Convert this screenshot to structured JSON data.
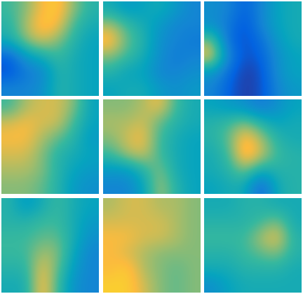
{
  "chart_data": [
    {
      "type": "heatmap",
      "tick_labels": false,
      "zlim": [
        0,
        1
      ],
      "cells": [
        [
          0.6,
          0.7,
          0.85,
          0.9,
          0.7,
          0.55
        ],
        [
          0.55,
          0.75,
          0.9,
          0.85,
          0.6,
          0.5
        ],
        [
          0.5,
          0.7,
          0.8,
          0.7,
          0.55,
          0.45
        ],
        [
          0.15,
          0.4,
          0.5,
          0.6,
          0.5,
          0.45
        ],
        [
          0.1,
          0.25,
          0.3,
          0.55,
          0.5,
          0.45
        ],
        [
          0.3,
          0.3,
          0.35,
          0.55,
          0.5,
          0.45
        ]
      ]
    },
    {
      "type": "heatmap",
      "tick_labels": false,
      "zlim": [
        0,
        1
      ],
      "cells": [
        [
          0.5,
          0.4,
          0.45,
          0.5,
          0.4,
          0.3
        ],
        [
          0.75,
          0.6,
          0.5,
          0.4,
          0.3,
          0.3
        ],
        [
          0.9,
          0.65,
          0.55,
          0.35,
          0.3,
          0.25
        ],
        [
          0.7,
          0.6,
          0.5,
          0.35,
          0.25,
          0.3
        ],
        [
          0.55,
          0.45,
          0.45,
          0.3,
          0.3,
          0.35
        ],
        [
          0.45,
          0.5,
          0.5,
          0.4,
          0.35,
          0.4
        ]
      ]
    },
    {
      "type": "heatmap",
      "tick_labels": false,
      "zlim": [
        0,
        1
      ],
      "cells": [
        [
          0.35,
          0.3,
          0.15,
          0.3,
          0.45,
          0.5
        ],
        [
          0.35,
          0.25,
          0.1,
          0.3,
          0.45,
          0.5
        ],
        [
          0.7,
          0.2,
          0.1,
          0.2,
          0.4,
          0.5
        ],
        [
          0.85,
          0.3,
          0.1,
          0.15,
          0.35,
          0.45
        ],
        [
          0.4,
          0.2,
          0.05,
          0.1,
          0.35,
          0.45
        ],
        [
          0.3,
          0.15,
          0.05,
          0.1,
          0.3,
          0.4
        ]
      ]
    },
    {
      "type": "heatmap",
      "tick_labels": false,
      "zlim": [
        0,
        1
      ],
      "cells": [
        [
          0.6,
          0.75,
          0.8,
          0.8,
          0.7,
          0.45
        ],
        [
          0.8,
          0.85,
          0.8,
          0.8,
          0.6,
          0.45
        ],
        [
          0.85,
          0.85,
          0.75,
          0.65,
          0.55,
          0.4
        ],
        [
          0.8,
          0.8,
          0.7,
          0.55,
          0.5,
          0.45
        ],
        [
          0.75,
          0.75,
          0.7,
          0.55,
          0.45,
          0.4
        ],
        [
          0.7,
          0.7,
          0.65,
          0.55,
          0.4,
          0.35
        ]
      ]
    },
    {
      "type": "heatmap",
      "tick_labels": false,
      "zlim": [
        0,
        1
      ],
      "cells": [
        [
          0.7,
          0.7,
          0.75,
          0.85,
          0.6,
          0.5
        ],
        [
          0.75,
          0.75,
          0.8,
          0.65,
          0.55,
          0.5
        ],
        [
          0.7,
          0.8,
          0.85,
          0.6,
          0.5,
          0.45
        ],
        [
          0.6,
          0.75,
          0.8,
          0.6,
          0.5,
          0.45
        ],
        [
          0.4,
          0.4,
          0.55,
          0.7,
          0.5,
          0.45
        ],
        [
          0.3,
          0.3,
          0.45,
          0.75,
          0.55,
          0.45
        ]
      ]
    },
    {
      "type": "heatmap",
      "tick_labels": false,
      "zlim": [
        0,
        1
      ],
      "cells": [
        [
          0.45,
          0.4,
          0.35,
          0.25,
          0.35,
          0.45
        ],
        [
          0.55,
          0.6,
          0.7,
          0.55,
          0.45,
          0.5
        ],
        [
          0.55,
          0.65,
          0.9,
          0.75,
          0.55,
          0.5
        ],
        [
          0.5,
          0.6,
          0.95,
          0.8,
          0.6,
          0.55
        ],
        [
          0.5,
          0.55,
          0.7,
          0.5,
          0.55,
          0.55
        ],
        [
          0.45,
          0.5,
          0.5,
          0.15,
          0.5,
          0.55
        ]
      ]
    },
    {
      "type": "heatmap",
      "tick_labels": false,
      "zlim": [
        0,
        1
      ],
      "cells": [
        [
          0.55,
          0.4,
          0.5,
          0.6,
          0.5,
          0.45
        ],
        [
          0.55,
          0.55,
          0.6,
          0.6,
          0.5,
          0.4
        ],
        [
          0.6,
          0.6,
          0.65,
          0.65,
          0.5,
          0.35
        ],
        [
          0.6,
          0.6,
          0.75,
          0.7,
          0.45,
          0.3
        ],
        [
          0.55,
          0.55,
          0.85,
          0.65,
          0.4,
          0.3
        ],
        [
          0.5,
          0.5,
          0.9,
          0.6,
          0.35,
          0.3
        ]
      ]
    },
    {
      "type": "heatmap",
      "tick_labels": false,
      "zlim": [
        0,
        1
      ],
      "cells": [
        [
          0.75,
          0.8,
          0.8,
          0.75,
          0.75,
          0.7
        ],
        [
          0.8,
          0.8,
          0.8,
          0.8,
          0.75,
          0.7
        ],
        [
          0.85,
          0.85,
          0.8,
          0.8,
          0.75,
          0.7
        ],
        [
          0.85,
          0.8,
          0.75,
          0.7,
          0.7,
          0.7
        ],
        [
          0.85,
          0.9,
          0.75,
          0.7,
          0.65,
          0.7
        ],
        [
          0.9,
          0.9,
          0.8,
          0.7,
          0.65,
          0.7
        ]
      ]
    },
    {
      "type": "heatmap",
      "tick_labels": false,
      "zlim": [
        0,
        1
      ],
      "cells": [
        [
          0.5,
          0.5,
          0.55,
          0.55,
          0.5,
          0.5
        ],
        [
          0.55,
          0.55,
          0.55,
          0.6,
          0.7,
          0.5
        ],
        [
          0.6,
          0.6,
          0.6,
          0.75,
          0.85,
          0.55
        ],
        [
          0.55,
          0.55,
          0.6,
          0.65,
          0.7,
          0.55
        ],
        [
          0.5,
          0.5,
          0.55,
          0.55,
          0.55,
          0.5
        ],
        [
          0.35,
          0.45,
          0.5,
          0.5,
          0.5,
          0.5
        ]
      ]
    }
  ]
}
